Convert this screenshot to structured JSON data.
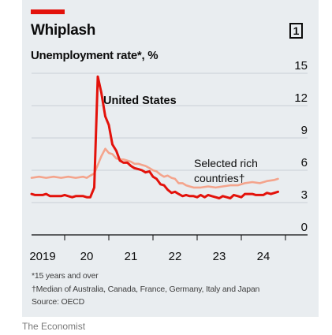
{
  "header": {
    "title": "Whiplash",
    "subtitle": "Unemployment rate*, %",
    "chart_number": "1"
  },
  "notes": {
    "footnote1": "*15 years and over",
    "footnote2": "†Median of Australia, Canada, France, Germany, Italy and Japan",
    "source": "Source: OECD"
  },
  "brand": "The Economist",
  "colors": {
    "accent": "#e3120b",
    "us_line": "#e3120b",
    "rich_line": "#f4a48c",
    "background": "#e9edf0",
    "grid": "#c9d0d6"
  },
  "chart_data": {
    "type": "line",
    "title": "Whiplash",
    "subtitle": "Unemployment rate*, %",
    "xlabel": "",
    "ylabel": "",
    "ylim": [
      0,
      15
    ],
    "xlim": [
      2018.75,
      2024.5
    ],
    "yticks": [
      0,
      3,
      6,
      9,
      12,
      15
    ],
    "xticks": [
      {
        "value": 2019,
        "label": "2019"
      },
      {
        "value": 2020,
        "label": "20"
      },
      {
        "value": 2021,
        "label": "21"
      },
      {
        "value": 2022,
        "label": "22"
      },
      {
        "value": 2023,
        "label": "23"
      },
      {
        "value": 2024,
        "label": "24"
      }
    ],
    "grid": true,
    "annotations": {
      "us": "United States",
      "rich_line1": "Selected rich",
      "rich_line2": "countries†"
    },
    "series": [
      {
        "name": "United States",
        "color": "#e3120b",
        "x": [
          2018.75,
          2018.83,
          2018.92,
          2019.0,
          2019.08,
          2019.17,
          2019.25,
          2019.33,
          2019.42,
          2019.5,
          2019.58,
          2019.67,
          2019.75,
          2019.83,
          2019.92,
          2020.0,
          2020.08,
          2020.17,
          2020.25,
          2020.33,
          2020.42,
          2020.5,
          2020.58,
          2020.67,
          2020.75,
          2020.83,
          2020.92,
          2021.0,
          2021.08,
          2021.17,
          2021.25,
          2021.33,
          2021.42,
          2021.5,
          2021.58,
          2021.67,
          2021.75,
          2021.83,
          2021.92,
          2022.0,
          2022.08,
          2022.17,
          2022.25,
          2022.33,
          2022.42,
          2022.5,
          2022.58,
          2022.67,
          2022.75,
          2022.83,
          2022.92,
          2023.0,
          2023.08,
          2023.17,
          2023.25,
          2023.33,
          2023.42,
          2023.5,
          2023.58,
          2023.67,
          2023.75,
          2023.83,
          2023.92,
          2024.0,
          2024.08,
          2024.17,
          2024.25,
          2024.33
        ],
        "values": [
          3.8,
          3.7,
          3.7,
          3.7,
          3.8,
          3.6,
          3.6,
          3.6,
          3.6,
          3.7,
          3.6,
          3.5,
          3.6,
          3.6,
          3.6,
          3.5,
          3.5,
          4.4,
          14.7,
          13.2,
          11.0,
          10.2,
          8.4,
          7.8,
          6.9,
          6.7,
          6.7,
          6.4,
          6.2,
          6.1,
          6.0,
          5.8,
          5.9,
          5.4,
          5.2,
          4.7,
          4.6,
          4.2,
          3.9,
          4.0,
          3.8,
          3.6,
          3.7,
          3.6,
          3.6,
          3.5,
          3.7,
          3.5,
          3.7,
          3.6,
          3.5,
          3.4,
          3.6,
          3.5,
          3.4,
          3.7,
          3.6,
          3.5,
          3.8,
          3.8,
          3.8,
          3.7,
          3.7,
          3.7,
          3.9,
          3.8,
          3.9,
          4.0
        ]
      },
      {
        "name": "Selected rich countries†",
        "color": "#f4a48c",
        "x": [
          2018.75,
          2018.92,
          2019.08,
          2019.25,
          2019.42,
          2019.58,
          2019.75,
          2019.92,
          2020.0,
          2020.08,
          2020.17,
          2020.25,
          2020.33,
          2020.42,
          2020.5,
          2020.58,
          2020.67,
          2020.75,
          2020.83,
          2020.92,
          2021.0,
          2021.08,
          2021.17,
          2021.25,
          2021.33,
          2021.42,
          2021.5,
          2021.58,
          2021.67,
          2021.75,
          2021.83,
          2021.92,
          2022.0,
          2022.08,
          2022.17,
          2022.25,
          2022.33,
          2022.42,
          2022.58,
          2022.75,
          2022.92,
          2023.08,
          2023.25,
          2023.42,
          2023.58,
          2023.75,
          2023.92,
          2024.08,
          2024.25,
          2024.33
        ],
        "values": [
          5.3,
          5.4,
          5.3,
          5.4,
          5.3,
          5.4,
          5.3,
          5.4,
          5.3,
          5.5,
          5.7,
          6.5,
          7.3,
          8.0,
          7.6,
          7.5,
          7.1,
          7.0,
          7.0,
          6.9,
          6.8,
          6.6,
          6.6,
          6.5,
          6.4,
          6.2,
          6.0,
          5.9,
          5.6,
          5.4,
          5.5,
          5.3,
          5.2,
          4.8,
          4.8,
          4.6,
          4.5,
          4.4,
          4.4,
          4.5,
          4.4,
          4.5,
          4.6,
          4.6,
          4.8,
          4.9,
          4.8,
          5.0,
          5.1,
          5.2
        ]
      }
    ]
  }
}
